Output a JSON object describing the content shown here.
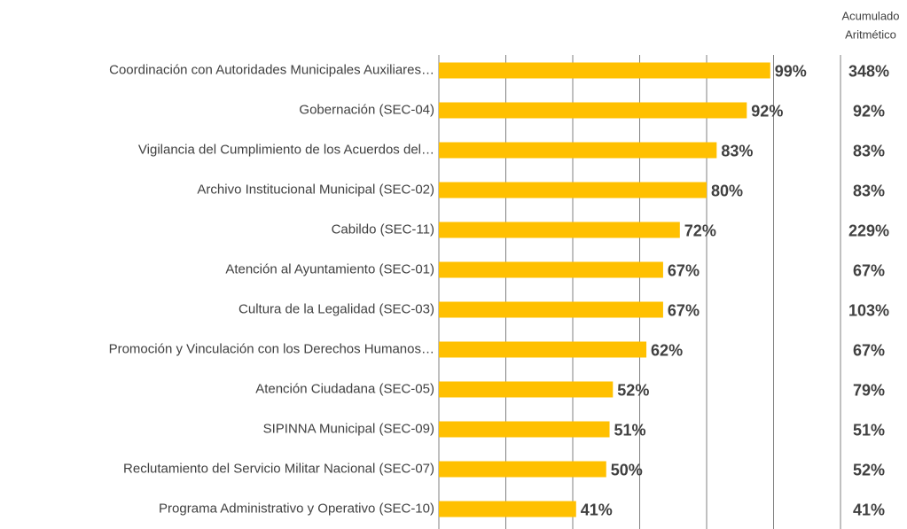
{
  "chart_data": {
    "type": "bar",
    "orientation": "horizontal",
    "categories": [
      "Coordinación con Autoridades Municipales Auxiliares…",
      "Gobernación (SEC-04)",
      "Vigilancia del Cumplimiento de los Acuerdos del…",
      "Archivo Institucional Municipal (SEC-02)",
      "Cabildo (SEC-11)",
      "Atención al Ayuntamiento (SEC-01)",
      "Cultura de la Legalidad (SEC-03)",
      "Promoción y Vinculación con los Derechos Humanos…",
      "Atención Ciudadana (SEC-05)",
      "SIPINNA Municipal (SEC-09)",
      "Reclutamiento del Servicio Militar Nacional (SEC-07)",
      "Programa Administrativo y Operativo (SEC-10)"
    ],
    "values": [
      99,
      92,
      83,
      80,
      72,
      67,
      67,
      62,
      52,
      51,
      50,
      41
    ],
    "value_labels": [
      "99%",
      "92%",
      "83%",
      "80%",
      "72%",
      "67%",
      "67%",
      "62%",
      "52%",
      "51%",
      "50%",
      "41%"
    ],
    "color": "#ffc000",
    "xlim": [
      0,
      120
    ],
    "xticks": [
      0,
      20,
      40,
      60,
      80,
      100,
      120
    ],
    "grid": true,
    "cumulative": {
      "header": [
        "Acumulado",
        "Aritmético"
      ],
      "values": [
        348,
        92,
        83,
        83,
        229,
        67,
        103,
        67,
        79,
        51,
        52,
        41
      ],
      "value_labels": [
        "348%",
        "92%",
        "83%",
        "83%",
        "229%",
        "67%",
        "103%",
        "67%",
        "79%",
        "51%",
        "52%",
        "41%"
      ]
    }
  }
}
